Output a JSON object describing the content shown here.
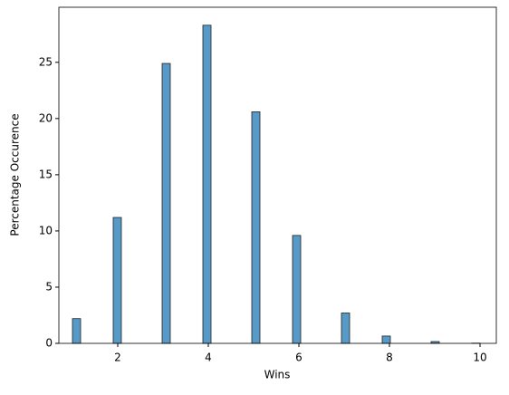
{
  "chart_data": {
    "type": "histogram",
    "xlabel": "Wins",
    "ylabel": "Percentage Occurence",
    "bins": [
      1.0,
      1.18,
      1.36,
      1.54,
      1.72,
      1.9,
      2.08,
      2.26,
      2.44,
      2.62,
      2.8,
      2.98,
      3.16,
      3.34,
      3.52,
      3.7,
      3.88,
      4.06,
      4.24,
      4.42,
      4.6,
      4.78,
      4.96,
      5.14,
      5.32,
      5.5,
      5.68,
      5.86,
      6.04,
      6.22,
      6.4,
      6.58,
      6.76,
      6.94,
      7.12,
      7.3,
      7.48,
      7.66,
      7.84,
      8.02,
      8.2,
      8.38,
      8.56,
      8.74,
      8.92,
      9.1,
      9.28,
      9.46,
      9.64,
      9.82,
      10.0
    ],
    "values": [
      2.2,
      0,
      0,
      0,
      0,
      11.2,
      0,
      0,
      0,
      0,
      0,
      24.9,
      0,
      0,
      0,
      0,
      28.3,
      0,
      0,
      0,
      0,
      0,
      20.6,
      0,
      0,
      0,
      0,
      9.6,
      0,
      0,
      0,
      0,
      0,
      2.7,
      0,
      0,
      0,
      0,
      0.65,
      0,
      0,
      0,
      0,
      0,
      0.16,
      0,
      0,
      0,
      0,
      0.02
    ],
    "color": "#5799c7",
    "xlim": [
      0.7,
      10.36
    ],
    "xticks": [
      2,
      4,
      6,
      8,
      10
    ],
    "ylim": [
      0,
      29.9
    ],
    "yticks": [
      0,
      5,
      10,
      15,
      20,
      25
    ]
  }
}
